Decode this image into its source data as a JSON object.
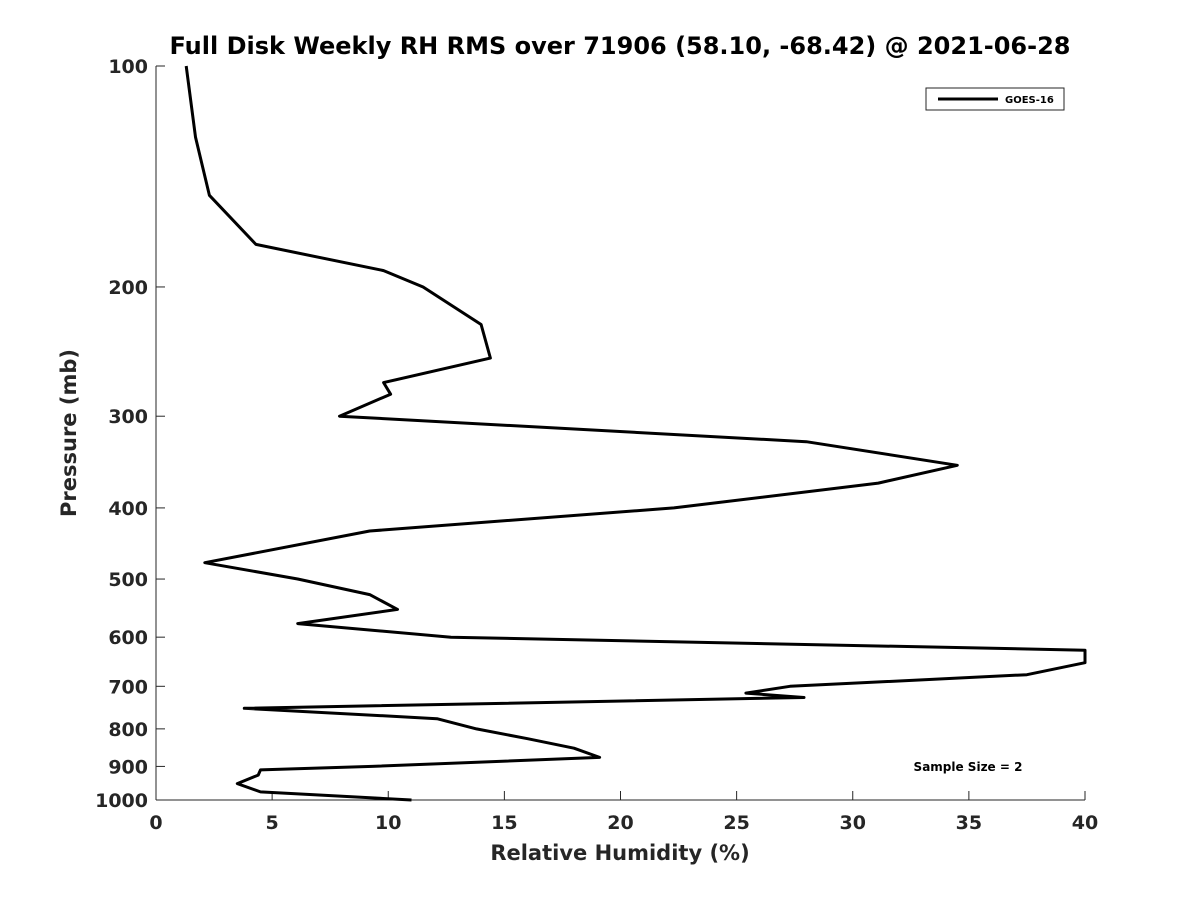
{
  "chart_data": {
    "type": "line",
    "title": "Full Disk Weekly RH RMS over 71906 (58.10, -68.42) @ 2021-06-28",
    "xlabel": "Relative Humidity (%)",
    "ylabel": "Pressure (mb)",
    "xlim": [
      0,
      40
    ],
    "ylim": [
      100,
      1000
    ],
    "y_scale": "log",
    "y_reversed": true,
    "x_ticks": [
      0,
      5,
      10,
      15,
      20,
      25,
      30,
      35,
      40
    ],
    "y_ticks": [
      100,
      200,
      300,
      400,
      500,
      600,
      700,
      800,
      900,
      1000
    ],
    "grid": false,
    "legend_position": "top-right",
    "annotation": "Sample Size = 2",
    "series": [
      {
        "name": "GOES-16",
        "color": "#000000",
        "points": [
          [
            1.3,
            100
          ],
          [
            1.7,
            125
          ],
          [
            2.3,
            150
          ],
          [
            4.3,
            175
          ],
          [
            9.8,
            190
          ],
          [
            11.5,
            200
          ],
          [
            14.0,
            225
          ],
          [
            14.4,
            250
          ],
          [
            9.8,
            270
          ],
          [
            10.1,
            280
          ],
          [
            7.9,
            300
          ],
          [
            28.0,
            325
          ],
          [
            34.5,
            350
          ],
          [
            31.1,
            370
          ],
          [
            22.3,
            400
          ],
          [
            9.2,
            430
          ],
          [
            2.1,
            475
          ],
          [
            6.1,
            500
          ],
          [
            9.2,
            525
          ],
          [
            10.4,
            550
          ],
          [
            6.1,
            575
          ],
          [
            12.7,
            600
          ],
          [
            40.0,
            625
          ],
          [
            40.0,
            650
          ],
          [
            37.5,
            675
          ],
          [
            27.3,
            700
          ],
          [
            25.4,
            715
          ],
          [
            27.9,
            725
          ],
          [
            3.8,
            750
          ],
          [
            12.1,
            775
          ],
          [
            13.8,
            800
          ],
          [
            16.0,
            825
          ],
          [
            18.0,
            850
          ],
          [
            19.1,
            875
          ],
          [
            9.3,
            900
          ],
          [
            4.5,
            910
          ],
          [
            4.4,
            925
          ],
          [
            3.5,
            950
          ],
          [
            4.5,
            975
          ],
          [
            11.0,
            1000
          ]
        ]
      }
    ]
  }
}
